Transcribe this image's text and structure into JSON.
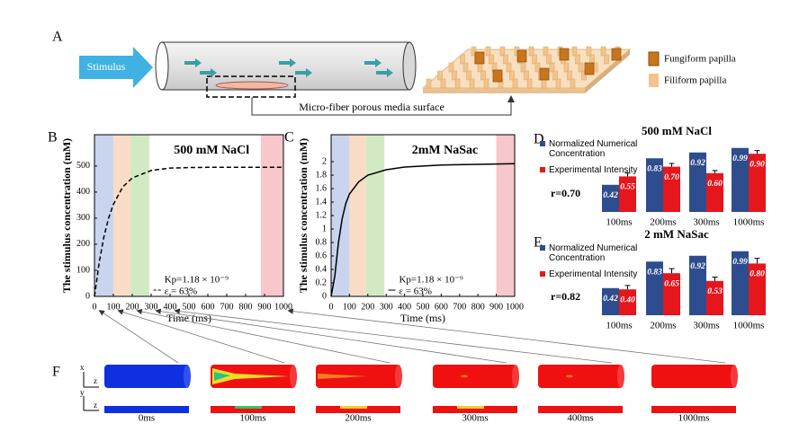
{
  "panel_a": {
    "label": "A",
    "stimulus": "Stimulus",
    "surface": "Micro-fiber porous media surface",
    "legend": [
      "Fungiform papilla",
      "Filiform papilla"
    ]
  },
  "chart_data": [
    {
      "type": "line",
      "panel": "B",
      "title": "500 mM NaCl",
      "x_label": "Time (ms)",
      "y_label": "The stimulus concentration (mM)",
      "annotations": [
        "Kp=1.18 × 10⁻⁹",
        "ε = 63%"
      ],
      "x": [
        0,
        25,
        50,
        75,
        100,
        150,
        200,
        300,
        400,
        500,
        600,
        700,
        800,
        900,
        1000
      ],
      "series": [
        {
          "color": "#000000",
          "line_style": "dashed",
          "values": [
            0,
            130,
            229,
            301,
            353,
            420,
            454,
            483,
            492,
            494,
            495,
            495,
            495,
            495,
            495
          ]
        }
      ],
      "highlights": [
        {
          "x": [
            0,
            100
          ],
          "color": "#c9d5ee"
        },
        {
          "x": [
            100,
            190
          ],
          "color": "#f9dcc6"
        },
        {
          "x": [
            190,
            290
          ],
          "color": "#d2eac3"
        },
        {
          "x": [
            880,
            1000
          ],
          "color": "#f7c7cb"
        }
      ],
      "xlim": [
        0,
        1000
      ],
      "xticks": [
        0,
        100,
        200,
        300,
        400,
        500,
        600,
        700,
        800,
        900,
        1000
      ],
      "ylim": [
        0,
        620
      ],
      "yticks": [
        0,
        100,
        200,
        300,
        400,
        500
      ]
    },
    {
      "type": "line",
      "panel": "C",
      "title": "2mM NaSac",
      "x_label": "Time (ms)",
      "y_label": "The stimulus concentration (mM)",
      "annotations": [
        "Kp=1.18 × 10⁻⁹",
        "ε = 63%"
      ],
      "x": [
        0,
        20,
        40,
        60,
        80,
        100,
        150,
        200,
        300,
        400,
        600,
        800,
        1000
      ],
      "series": [
        {
          "color": "#000000",
          "line_style": "solid",
          "values": [
            0,
            0.3,
            0.8,
            1.15,
            1.38,
            1.52,
            1.7,
            1.8,
            1.88,
            1.92,
            1.95,
            1.96,
            1.97
          ]
        }
      ],
      "highlights": [
        {
          "x": [
            0,
            100
          ],
          "color": "#c9d5ee"
        },
        {
          "x": [
            100,
            190
          ],
          "color": "#f9dcc6"
        },
        {
          "x": [
            190,
            290
          ],
          "color": "#d2eac3"
        },
        {
          "x": [
            900,
            1000
          ],
          "color": "#f7c7cb"
        }
      ],
      "xlim": [
        0,
        1000
      ],
      "xticks": [
        0,
        100,
        200,
        300,
        400,
        500,
        600,
        700,
        800,
        900,
        1000
      ],
      "ylim": [
        0,
        2.4
      ],
      "yticks": [
        0,
        0.2,
        0.4,
        0.6,
        0.8,
        1,
        1.2,
        1.4,
        1.6,
        1.8,
        2
      ]
    },
    {
      "type": "bar",
      "panel": "D",
      "title": "500 mM NaCl",
      "annotation": "r=0.70",
      "categories": [
        "100ms",
        "200ms",
        "300ms",
        "1000ms"
      ],
      "ylim": [
        0,
        1
      ],
      "series": [
        {
          "name": "Normalized Numerical Concentration",
          "color": "#2e4d8e",
          "values": [
            0.42,
            0.83,
            0.92,
            0.99
          ],
          "value_labels": [
            "0.42",
            "0.83",
            "0.92",
            "0.99"
          ]
        },
        {
          "name": "Experimental Intensity",
          "color": "#e5161c",
          "values": [
            0.55,
            0.7,
            0.6,
            0.9
          ],
          "value_labels": [
            "0.55",
            "0.70",
            "0.60",
            "0.90"
          ],
          "errors": [
            0.05,
            0.05,
            0.04,
            0.05
          ]
        }
      ]
    },
    {
      "type": "bar",
      "panel": "E",
      "title": "2 mM NaSac",
      "annotation": "r=0.82",
      "categories": [
        "100ms",
        "200ms",
        "300ms",
        "1000ms"
      ],
      "ylim": [
        0,
        1
      ],
      "series": [
        {
          "name": "Normalized Numerical Concentration",
          "color": "#2e4d8e",
          "values": [
            0.42,
            0.83,
            0.92,
            0.99
          ],
          "value_labels": [
            "0.42",
            "0.83",
            "0.92",
            "0.99"
          ]
        },
        {
          "name": "Experimental Intensity",
          "color": "#e5161c",
          "values": [
            0.4,
            0.65,
            0.53,
            0.8
          ],
          "value_labels": [
            "0.40",
            "0.65",
            "0.53",
            "0.80"
          ],
          "errors": [
            0.06,
            0.07,
            0.06,
            0.08
          ]
        }
      ]
    }
  ],
  "panel_f": {
    "label": "F",
    "times": [
      "0ms",
      "100ms",
      "200ms",
      "300ms",
      "400ms",
      "1000ms"
    ],
    "axes": [
      "x",
      "z",
      "y",
      "z"
    ]
  }
}
